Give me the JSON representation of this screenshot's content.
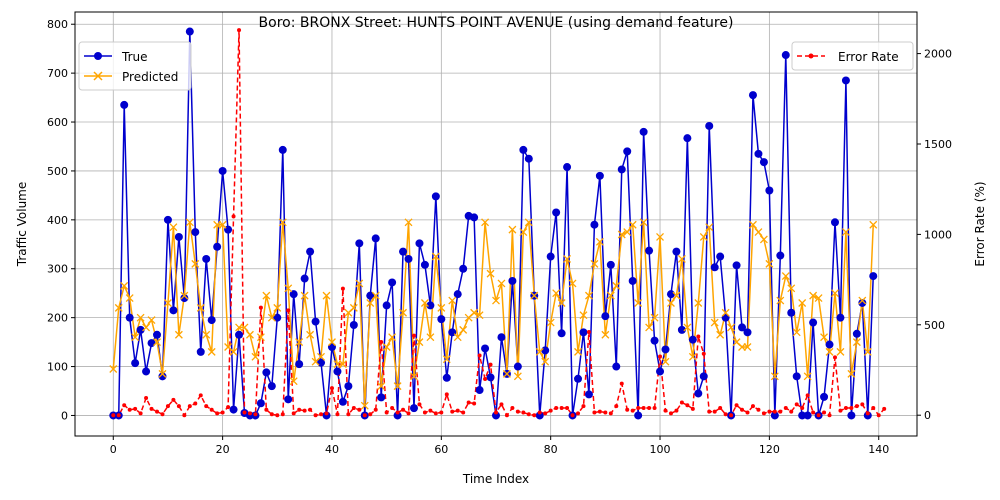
{
  "chart_data": {
    "type": "line",
    "title": "Boro: BRONX Street: HUNTS POINT AVENUE (using demand feature)",
    "xlabel": "Time Index",
    "ylabel": "Traffic Volume",
    "y2label": "Error Rate (%)",
    "xlim": [
      -7,
      147
    ],
    "ylim": [
      -42,
      825
    ],
    "y2lim": [
      -115,
      2230
    ],
    "xticks": [
      0,
      20,
      40,
      60,
      80,
      100,
      120,
      140
    ],
    "yticks": [
      0,
      100,
      200,
      300,
      400,
      500,
      600,
      700,
      800
    ],
    "y2ticks": [
      0,
      500,
      1000,
      1500,
      2000
    ],
    "grid": true,
    "legend_left": "top-left",
    "legend_right": "top-right",
    "colors": {
      "true": "#0000cd",
      "predicted": "#ffa500",
      "error": "#ff0000"
    },
    "series": [
      {
        "name": "True",
        "axis": "left",
        "style": "line-circle",
        "values": [
          0,
          0,
          635,
          200,
          107,
          175,
          90,
          148,
          165,
          80,
          400,
          215,
          365,
          240,
          785,
          375,
          130,
          320,
          195,
          345,
          500,
          380,
          12,
          165,
          5,
          0,
          0,
          25,
          88,
          60,
          200,
          543,
          33,
          248,
          105,
          280,
          335,
          192,
          108,
          0,
          140,
          90,
          28,
          60,
          185,
          352,
          0,
          245,
          362,
          37,
          225,
          272,
          0,
          335,
          320,
          15,
          352,
          308,
          225,
          448,
          197,
          77,
          170,
          248,
          300,
          408,
          405,
          52,
          137,
          78,
          0,
          160,
          85,
          275,
          100,
          543,
          525,
          245,
          0,
          133,
          325,
          415,
          168,
          508,
          0,
          75,
          170,
          43,
          390,
          490,
          203,
          308,
          100,
          503,
          540,
          275,
          0,
          580,
          337,
          153,
          90,
          135,
          248,
          335,
          175,
          567,
          155,
          45,
          80,
          592,
          303,
          325,
          200,
          0,
          307,
          180,
          170,
          655,
          535,
          518,
          460,
          0,
          327,
          737,
          210,
          80,
          0,
          0,
          190,
          0,
          38,
          145,
          395,
          200,
          685,
          0,
          167,
          230,
          0,
          285
        ]
      },
      {
        "name": "Predicted",
        "axis": "left",
        "style": "line-x",
        "values": [
          95,
          220,
          265,
          240,
          160,
          200,
          180,
          195,
          150,
          85,
          230,
          385,
          165,
          245,
          395,
          310,
          220,
          165,
          130,
          390,
          390,
          140,
          130,
          180,
          180,
          165,
          120,
          160,
          245,
          200,
          220,
          395,
          260,
          70,
          150,
          245,
          165,
          110,
          120,
          245,
          150,
          105,
          105,
          210,
          220,
          270,
          20,
          230,
          245,
          60,
          140,
          160,
          60,
          210,
          395,
          80,
          150,
          230,
          160,
          325,
          220,
          115,
          235,
          160,
          175,
          200,
          210,
          205,
          395,
          290,
          235,
          270,
          85,
          380,
          80,
          375,
          395,
          245,
          130,
          110,
          190,
          250,
          230,
          320,
          270,
          130,
          205,
          245,
          310,
          355,
          165,
          245,
          265,
          370,
          375,
          390,
          230,
          395,
          180,
          200,
          365,
          110,
          230,
          245,
          320,
          180,
          120,
          230,
          365,
          385,
          190,
          165,
          210,
          180,
          150,
          140,
          140,
          390,
          375,
          360,
          310,
          80,
          235,
          285,
          260,
          170,
          230,
          80,
          245,
          240,
          160,
          130,
          250,
          130,
          375,
          85,
          150,
          235,
          130,
          390
        ]
      },
      {
        "name": "Error Rate",
        "axis": "right",
        "style": "dashed-dot",
        "values": [
          0,
          0,
          55,
          30,
          35,
          10,
          95,
          35,
          20,
          5,
          50,
          85,
          50,
          0,
          50,
          65,
          110,
          50,
          30,
          10,
          15,
          45,
          1100,
          2130,
          15,
          10,
          5,
          595,
          30,
          5,
          0,
          5,
          580,
          10,
          30,
          25,
          30,
          0,
          5,
          10,
          150,
          5,
          700,
          5,
          40,
          30,
          0,
          5,
          30,
          405,
          15,
          40,
          15,
          30,
          10,
          440,
          60,
          15,
          25,
          10,
          15,
          115,
          20,
          25,
          15,
          70,
          65,
          330,
          200,
          280,
          15,
          60,
          0,
          40,
          20,
          15,
          5,
          0,
          15,
          10,
          25,
          40,
          40,
          40,
          0,
          10,
          50,
          460,
          15,
          20,
          15,
          10,
          50,
          175,
          30,
          25,
          40,
          40,
          40,
          40,
          325,
          25,
          10,
          25,
          70,
          55,
          35,
          435,
          340,
          20,
          20,
          40,
          5,
          0,
          55,
          30,
          15,
          50,
          30,
          10,
          20,
          20,
          20,
          40,
          20,
          60,
          40,
          110,
          15,
          0,
          15,
          0,
          320,
          25,
          40,
          40,
          50,
          60,
          10,
          40,
          0,
          35
        ]
      }
    ]
  }
}
